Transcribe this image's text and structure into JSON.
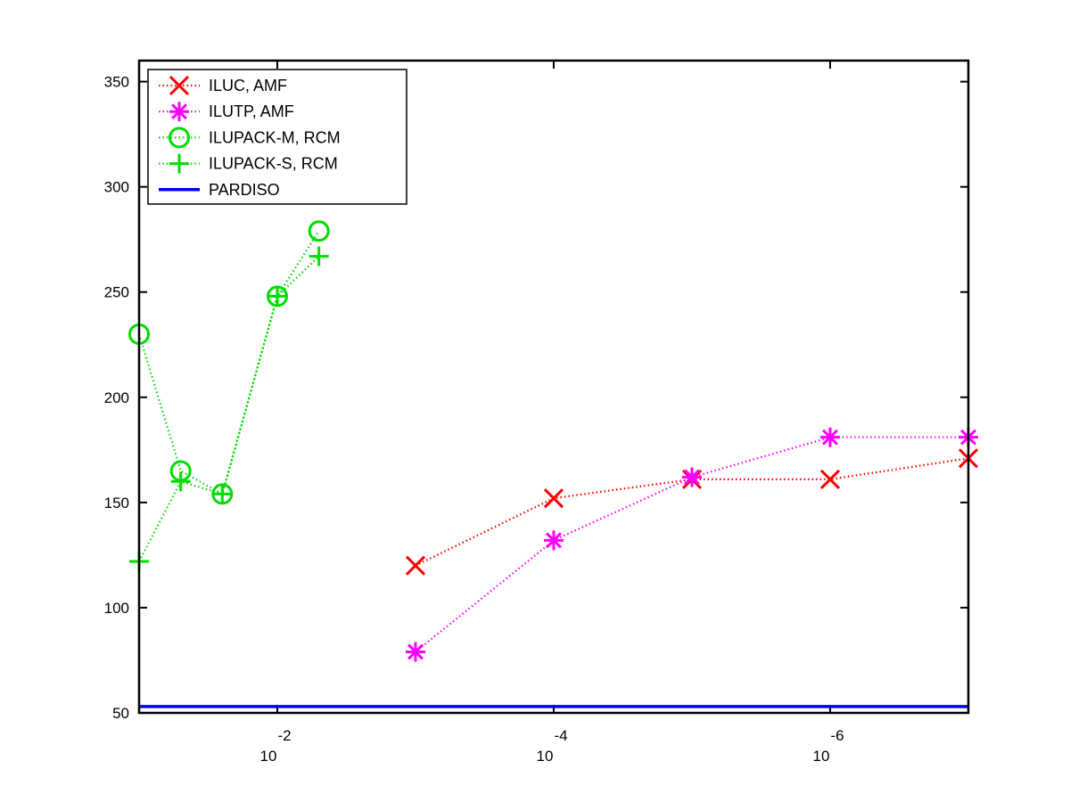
{
  "chart_data": {
    "type": "line",
    "title": "",
    "xlabel": "",
    "ylabel": "",
    "xscale": "log",
    "xaxis_reversed": true,
    "xlim": [
      0.1,
      1e-07
    ],
    "ylim": [
      50,
      360
    ],
    "grid": false,
    "legend_position": "top-left",
    "x_ticks": [
      {
        "value": 0.01,
        "base": "10",
        "exponent": "-2"
      },
      {
        "value": 0.0001,
        "base": "10",
        "exponent": "-4"
      },
      {
        "value": 1e-06,
        "base": "10",
        "exponent": "-6"
      }
    ],
    "y_ticks": [
      {
        "value": 50,
        "label": "50"
      },
      {
        "value": 100,
        "label": "100"
      },
      {
        "value": 150,
        "label": "150"
      },
      {
        "value": 200,
        "label": "200"
      },
      {
        "value": 250,
        "label": "250"
      },
      {
        "value": 300,
        "label": "300"
      },
      {
        "value": 350,
        "label": "350"
      }
    ],
    "series": [
      {
        "name": "ILUC, AMF",
        "color": "#ff0000",
        "marker": "x",
        "line_style": "dotted",
        "x": [
          0.001,
          0.0001,
          1e-05,
          1e-06,
          1e-07
        ],
        "y": [
          120,
          152,
          161,
          161,
          171
        ]
      },
      {
        "name": "ILUTP, AMF",
        "color": "#ff00ff",
        "marker": "star",
        "line_style": "dotted",
        "x": [
          0.001,
          0.0001,
          1e-05,
          1e-06,
          1e-07
        ],
        "y": [
          79,
          132,
          162,
          181,
          181
        ]
      },
      {
        "name": "ILUPACK-M, RCM",
        "color": "#00dd00",
        "marker": "circle",
        "line_style": "dotted",
        "x": [
          0.1,
          0.05,
          0.025,
          0.01,
          0.005
        ],
        "y": [
          230,
          165,
          154,
          248,
          279
        ]
      },
      {
        "name": "ILUPACK-S, RCM",
        "color": "#00dd00",
        "marker": "plus",
        "line_style": "dotted",
        "x": [
          0.1,
          0.05,
          0.025,
          0.01,
          0.005
        ],
        "y": [
          122,
          160,
          154,
          248,
          267
        ]
      },
      {
        "name": "PARDISO",
        "color": "#0000ee",
        "marker": "none",
        "line_style": "solid",
        "x": [
          0.1,
          1e-07
        ],
        "y": [
          53,
          53
        ]
      }
    ]
  }
}
